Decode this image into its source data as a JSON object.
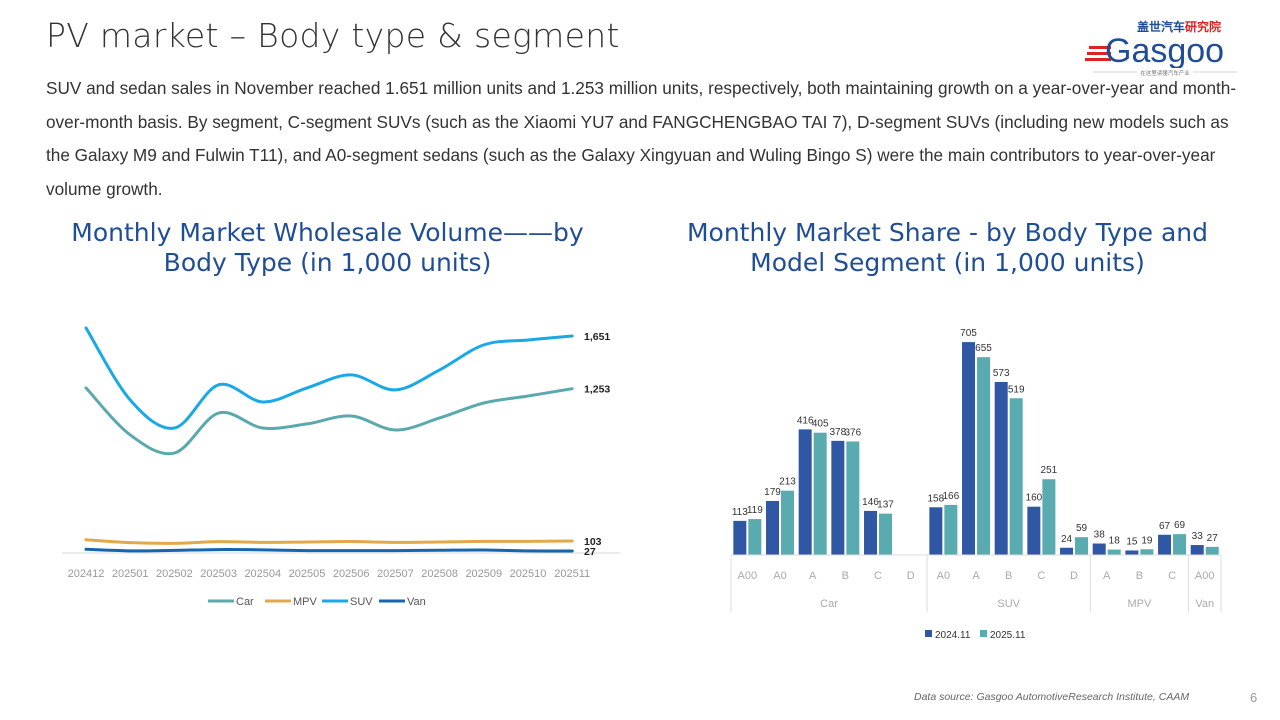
{
  "header": {
    "title": "PV market – Body type & segment",
    "logo_text_cn": "盖世汽车研究院",
    "logo_text_en": "Gasgoo",
    "logo_slogan": "在这里读懂汽车产业"
  },
  "body_text": "SUV and sedan sales in November reached 1.651 million units and 1.253 million units, respectively, both maintaining growth on a year-over-year and month-over-month basis. By segment, C-segment SUVs (such as the Xiaomi YU7 and FANGCHENGBAO TAI 7), D-segment SUVs (including new models such as the Galaxy M9 and Fulwin T11), and A0-segment sedans (such as the Galaxy Xingyuan and Wuling Bingo S) were the main contributors to year-over-year volume growth.",
  "footer": {
    "source": "Data source: Gasgoo AutomotiveResearch Institute, CAAM",
    "page": "6"
  },
  "chart_data": [
    {
      "type": "line",
      "title": "Monthly Market Wholesale Volume——by Body Type (in 1,000 units)",
      "categories": [
        "202412",
        "202501",
        "202502",
        "202503",
        "202504",
        "202505",
        "202506",
        "202507",
        "202508",
        "202509",
        "202510",
        "202511"
      ],
      "series": [
        {
          "name": "Car",
          "color": "#5aa9ad",
          "values": [
            1259,
            904,
            767,
            1069,
            956,
            987,
            1047,
            941,
            1032,
            1145,
            1198,
            1253
          ],
          "end_label": "1,253"
        },
        {
          "name": "MPV",
          "color": "#e3a84b",
          "values": [
            112,
            90,
            85,
            98,
            92,
            95,
            99,
            92,
            95,
            100,
            100,
            103
          ],
          "end_label": "103"
        },
        {
          "name": "SUV",
          "color": "#1aa8e6",
          "values": [
            1712,
            1168,
            956,
            1282,
            1153,
            1259,
            1357,
            1244,
            1395,
            1584,
            1621,
            1651
          ],
          "end_label": "1,651"
        },
        {
          "name": "Van",
          "color": "#1565b0",
          "values": [
            40,
            28,
            32,
            38,
            36,
            30,
            30,
            30,
            33,
            35,
            28,
            27
          ],
          "end_label": "27"
        }
      ],
      "legend": "bottom",
      "grid": false,
      "ylim": [
        0,
        1800
      ]
    },
    {
      "type": "bar",
      "title": "Monthly Market Share - by Body Type and Model Segment (in 1,000 units)",
      "groups": [
        {
          "name": "Car",
          "segments": [
            "A00",
            "A0",
            "A",
            "B",
            "C",
            "D"
          ]
        },
        {
          "name": "SUV",
          "segments": [
            "A0",
            "A",
            "B",
            "C",
            "D"
          ]
        },
        {
          "name": "MPV",
          "segments": [
            "A",
            "B",
            "C"
          ]
        },
        {
          "name": "Van",
          "segments": [
            "A00"
          ]
        }
      ],
      "series": [
        {
          "name": "2024.11",
          "color": "#2f57a4",
          "values": [
            113,
            179,
            416,
            378,
            146,
            1,
            158,
            705,
            573,
            160,
            24,
            38,
            15,
            67,
            33
          ],
          "labels": [
            "113",
            "179",
            "416",
            "378",
            "146",
            "",
            "158",
            "705",
            "573",
            "160",
            "24",
            "38",
            "15",
            "67",
            "33"
          ]
        },
        {
          "name": "2025.11",
          "color": "#5aabb0",
          "values": [
            119,
            213,
            405,
            376,
            137,
            0,
            166,
            655,
            519,
            251,
            59,
            18,
            19,
            69,
            27
          ],
          "labels": [
            "119",
            "213",
            "405",
            "376",
            "137",
            "",
            "166",
            "655",
            "519",
            "251",
            "59",
            "18",
            "19",
            "69",
            "27"
          ]
        }
      ],
      "legend": "bottom",
      "grid": false,
      "ylim": [
        0,
        705
      ]
    }
  ]
}
